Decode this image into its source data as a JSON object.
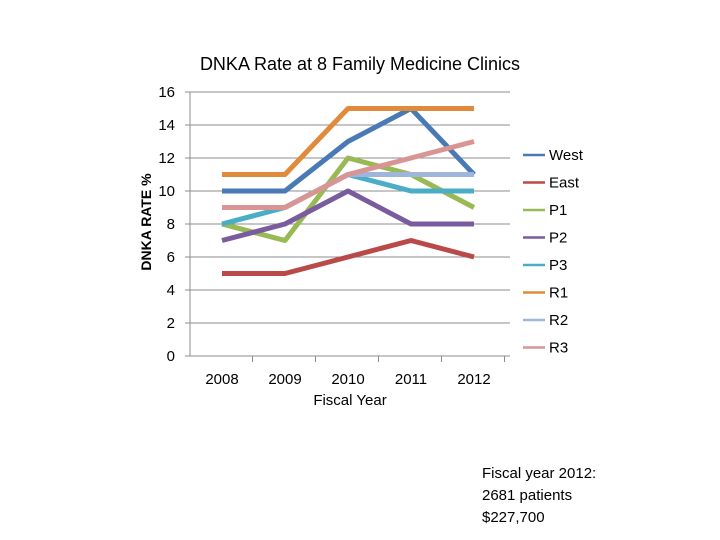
{
  "chart_data": {
    "type": "line",
    "title": "DNKA Rate at 8 Family Medicine  Clinics",
    "xlabel": "Fiscal Year",
    "ylabel": "DNKA  RATE %",
    "ylim": [
      0,
      16
    ],
    "yticks": [
      0,
      2,
      4,
      6,
      8,
      10,
      12,
      14,
      16
    ],
    "grid": true,
    "legend_position": "right",
    "categories": [
      "2008",
      "2009",
      "2010",
      "2011",
      "2012"
    ],
    "series": [
      {
        "name": "West",
        "color": "#4a7ab5",
        "values": [
          10,
          10,
          13,
          15,
          11
        ]
      },
      {
        "name": "East",
        "color": "#b94a48",
        "values": [
          5,
          5,
          6,
          7,
          6
        ]
      },
      {
        "name": "P1",
        "color": "#98b954",
        "values": [
          8,
          7,
          12,
          11,
          9
        ]
      },
      {
        "name": "P2",
        "color": "#7a5c9e",
        "values": [
          7,
          8,
          10,
          8,
          8
        ]
      },
      {
        "name": "P3",
        "color": "#4bacc6",
        "values": [
          8,
          9,
          11,
          10,
          10
        ]
      },
      {
        "name": "R1",
        "color": "#e08a3c",
        "values": [
          11,
          11,
          15,
          15,
          15
        ]
      },
      {
        "name": "R2",
        "color": "#9fb5db",
        "values": [
          9,
          9,
          11,
          11,
          11
        ]
      },
      {
        "name": "R3",
        "color": "#d99594",
        "values": [
          9,
          9,
          11,
          12,
          13
        ]
      }
    ]
  },
  "note": {
    "line1": "Fiscal year 2012:",
    "line2": "2681 patients",
    "line3": "$227,700"
  }
}
